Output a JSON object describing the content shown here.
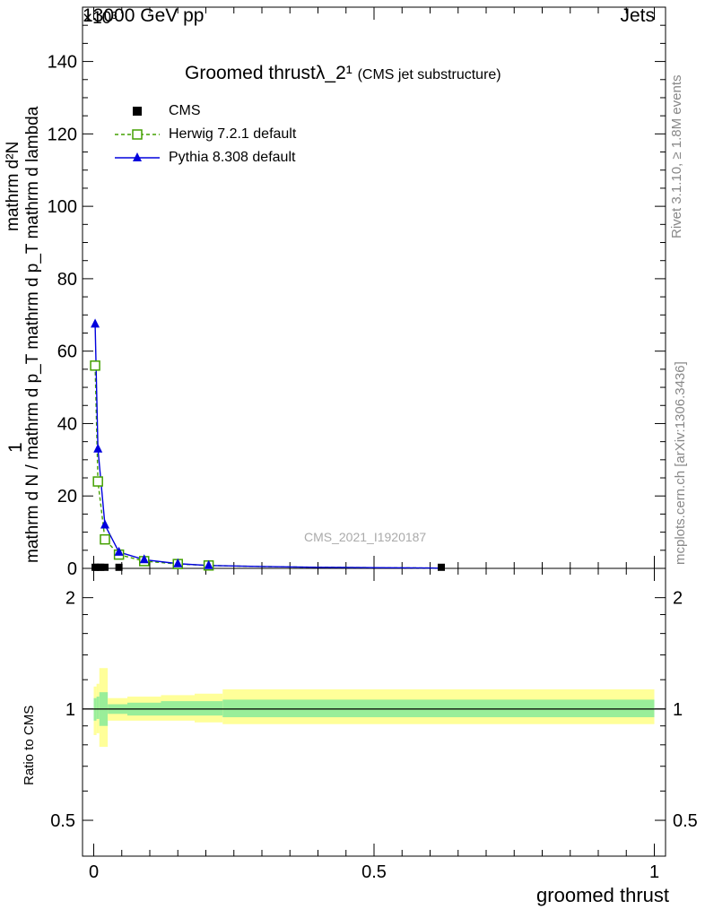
{
  "header": {
    "left": "13000 GeV pp",
    "right": "Jets",
    "exponent": "×10³"
  },
  "side_labels": {
    "rivet": "Rivet 3.1.10, ≥ 1.8M events",
    "mcplots": "mcplots.cern.ch [arXiv:1306.3436]"
  },
  "watermark": "CMS_2021_I1920187",
  "colors": {
    "herwig": "#44a000",
    "pythia": "#0000dd",
    "band_outer": "#ffff99",
    "band_inner": "#99ee99"
  },
  "chart_data": [
    {
      "type": "line",
      "title": "Groomed thrustλ_2¹",
      "subtitle": "(CMS jet substructure)",
      "ylabel": "1 / mathrm d N / mathrm d p_T mathrm d p_T mathrm d lambda mathrm d²N",
      "ylabel_parts": {
        "numerator": "1",
        "denominator": "mathrm d N / mathrm d p_T mathrm d p_T mathrm d lambda",
        "top": "mathrm d²N"
      },
      "xlim": [
        -0.02,
        1.02
      ],
      "ylim": [
        0,
        155
      ],
      "yscale_note": "×10³",
      "yticks": [
        0,
        20,
        40,
        60,
        80,
        100,
        120,
        140
      ],
      "ytick_labels": [
        "0",
        "20",
        "40",
        "60",
        "80",
        "100",
        "120",
        "140"
      ],
      "legend": [
        "CMS",
        "Herwig 7.2.1 default",
        "Pythia 8.308 default"
      ],
      "legend_position": "top-left",
      "series": [
        {
          "name": "CMS",
          "marker": "square-filled",
          "x": [
            0.0025,
            0.0075,
            0.0125,
            0.02,
            0.045,
            0.62
          ],
          "y": [
            0.3,
            0.3,
            0.3,
            0.3,
            0.3,
            0.3
          ]
        },
        {
          "name": "Herwig 7.2.1 default",
          "marker": "square-open",
          "style": "dashed",
          "x": [
            0.0025,
            0.0075,
            0.02,
            0.045,
            0.09,
            0.15,
            0.205,
            0.3,
            0.4,
            0.5,
            0.6,
            0.62
          ],
          "y": [
            56.0,
            24.0,
            8.0,
            3.8,
            2.0,
            1.2,
            0.8,
            0.5,
            0.3,
            0.2,
            0.1,
            0.05
          ]
        },
        {
          "name": "Pythia 8.308 default",
          "marker": "triangle-filled",
          "style": "solid",
          "x": [
            0.0025,
            0.0075,
            0.02,
            0.045,
            0.09,
            0.15,
            0.205,
            0.3,
            0.4,
            0.5,
            0.6,
            0.62
          ],
          "y": [
            67.5,
            33.0,
            12.0,
            4.5,
            2.4,
            1.3,
            0.8,
            0.5,
            0.3,
            0.2,
            0.1,
            0.05
          ]
        }
      ]
    },
    {
      "type": "area",
      "ylabel": "Ratio to CMS",
      "xlabel": "groomed thrust",
      "xlim": [
        -0.02,
        1.02
      ],
      "ylim": [
        0.4,
        2.4
      ],
      "yscale": "log",
      "yticks": [
        0.5,
        1,
        2
      ],
      "ytick_labels": [
        "0.5",
        "1",
        "2"
      ],
      "xticks": [
        0,
        0.5,
        1
      ],
      "xtick_labels": [
        "0",
        "0.5",
        "1"
      ],
      "reference": 1,
      "bands": [
        {
          "x0": 0.0,
          "x1": 0.005,
          "outer": [
            0.85,
            1.15
          ],
          "inner": [
            0.93,
            1.07
          ]
        },
        {
          "x0": 0.005,
          "x1": 0.01,
          "outer": [
            0.86,
            1.17
          ],
          "inner": [
            0.94,
            1.08
          ]
        },
        {
          "x0": 0.01,
          "x1": 0.025,
          "outer": [
            0.79,
            1.29
          ],
          "inner": [
            0.9,
            1.11
          ]
        },
        {
          "x0": 0.025,
          "x1": 0.06,
          "outer": [
            0.93,
            1.07
          ],
          "inner": [
            0.97,
            1.03
          ]
        },
        {
          "x0": 0.06,
          "x1": 0.12,
          "outer": [
            0.93,
            1.08
          ],
          "inner": [
            0.96,
            1.04
          ]
        },
        {
          "x0": 0.12,
          "x1": 0.18,
          "outer": [
            0.93,
            1.09
          ],
          "inner": [
            0.96,
            1.05
          ]
        },
        {
          "x0": 0.18,
          "x1": 0.23,
          "outer": [
            0.92,
            1.1
          ],
          "inner": [
            0.96,
            1.05
          ]
        },
        {
          "x0": 0.23,
          "x1": 1.0,
          "outer": [
            0.91,
            1.13
          ],
          "inner": [
            0.95,
            1.06
          ]
        }
      ]
    }
  ]
}
